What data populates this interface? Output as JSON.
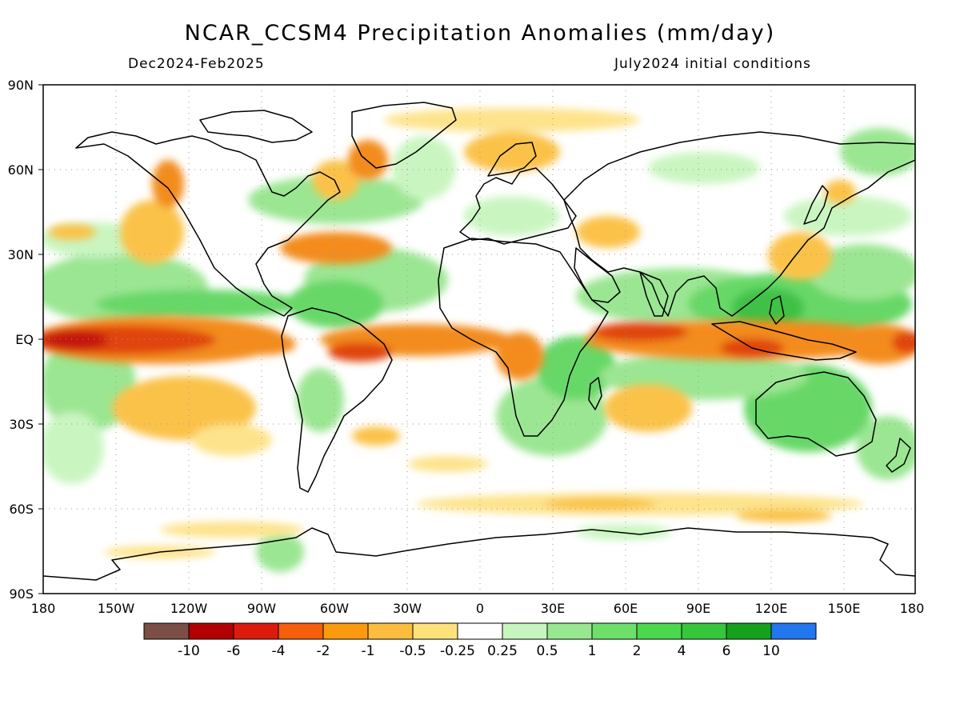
{
  "header": {
    "title": "NCAR_CCSM4 Precipitation Anomalies (mm/day)",
    "period": "Dec2024-Feb2025",
    "init": "July2024 initial conditions"
  },
  "map": {
    "lat_ticks": [
      "90N",
      "60N",
      "30N",
      "EQ",
      "30S",
      "60S",
      "90S"
    ],
    "lon_ticks": [
      "180",
      "150W",
      "120W",
      "90W",
      "60W",
      "30W",
      "0",
      "30E",
      "60E",
      "90E",
      "120E",
      "150E",
      "180"
    ],
    "grid": true
  },
  "colorbar": {
    "colors": [
      "#7b4f46",
      "#b30000",
      "#dc1b0d",
      "#f55e0a",
      "#fb9a0e",
      "#fcbd3f",
      "#fde27c",
      "#ffffff",
      "#c7f5be",
      "#98e88f",
      "#6de06a",
      "#4ad84d",
      "#35c63a",
      "#15a11c",
      "#2277ee"
    ],
    "labels": [
      "-10",
      "-6",
      "-4",
      "-2",
      "-1",
      "-0.5",
      "-0.25",
      "0.25",
      "0.5",
      "1",
      "2",
      "4",
      "6",
      "10"
    ]
  },
  "palette": {
    "dry_strong": "#e0440e",
    "dry_mid": "#f38c1c",
    "dry_light": "#fbc24a",
    "dry_faint": "#fde38b",
    "wet_faint": "#c7f5be",
    "wet_light": "#96e58d",
    "wet_mid": "#5fd65e",
    "wet_strong": "#36be3e",
    "coast": "#000000"
  }
}
